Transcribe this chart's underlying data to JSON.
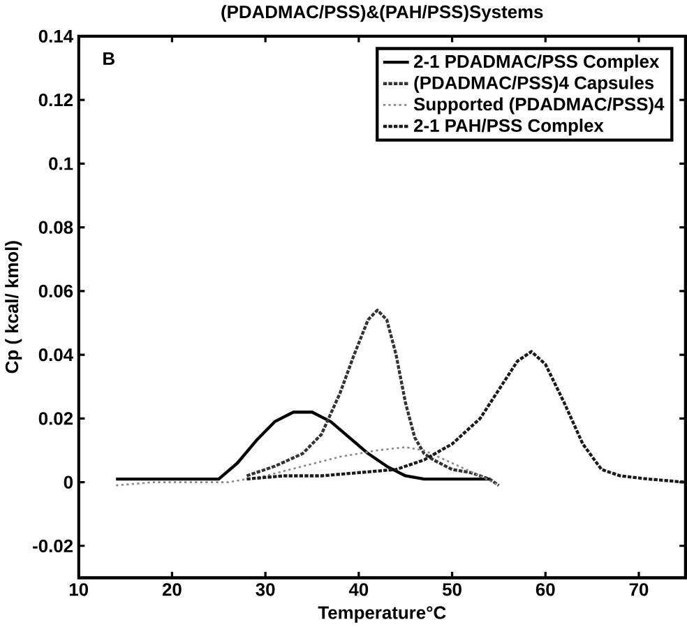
{
  "chart_data": {
    "type": "line",
    "title": "(PDADMAC/PSS)&(PAH/PSS)Systems",
    "xlabel": "Temperature°C",
    "ylabel": "Cp ( kcal/ kmol)",
    "annotations": [
      "B"
    ],
    "xlim": [
      10,
      75
    ],
    "ylim": [
      -0.03,
      0.14
    ],
    "xticks": [
      10,
      20,
      30,
      40,
      50,
      60,
      70
    ],
    "yticks": [
      -0.02,
      0,
      0.02,
      0.04,
      0.06,
      0.08,
      0.1,
      0.12,
      0.14
    ],
    "legend": "top right",
    "grid": false,
    "series": [
      {
        "name": "2-1 PDADMAC/PSS Complex",
        "color": "#000000",
        "line_style": "solid",
        "x": [
          14,
          18,
          22,
          25,
          27,
          29,
          31,
          33,
          34,
          35,
          37,
          39,
          41,
          43,
          45,
          47,
          50,
          54
        ],
        "values": [
          0.001,
          0.001,
          0.001,
          0.001,
          0.006,
          0.013,
          0.019,
          0.022,
          0.022,
          0.022,
          0.019,
          0.014,
          0.009,
          0.005,
          0.002,
          0.001,
          0.001,
          0.001
        ]
      },
      {
        "name": "(PDADMAC/PSS)4 Capsules",
        "color": "#333333",
        "line_style": "dashed",
        "x": [
          28,
          31,
          34,
          36,
          38,
          39.5,
          41,
          42,
          43,
          44,
          45,
          46,
          47,
          48,
          50,
          52,
          54,
          55
        ],
        "values": [
          0.002,
          0.005,
          0.009,
          0.015,
          0.028,
          0.04,
          0.051,
          0.054,
          0.051,
          0.04,
          0.025,
          0.014,
          0.009,
          0.007,
          0.004,
          0.003,
          0.001,
          -0.001
        ]
      },
      {
        "name": "Supported (PDADMAC/PSS)4",
        "color": "#888888",
        "line_style": "dotted",
        "x": [
          14,
          18,
          22,
          26,
          30,
          34,
          38,
          42,
          45,
          47,
          50,
          53,
          55
        ],
        "values": [
          -0.001,
          0,
          0,
          0,
          0.002,
          0.005,
          0.008,
          0.01,
          0.011,
          0.01,
          0.006,
          0.002,
          -0.001
        ]
      },
      {
        "name": "2-1 PAH/PSS Complex",
        "color": "#1a1a1a",
        "line_style": "dashed",
        "x": [
          28,
          32,
          36,
          40,
          44,
          47,
          50,
          53,
          55,
          57,
          58.5,
          60,
          62,
          64,
          66,
          68,
          71,
          75
        ],
        "values": [
          0.001,
          0.002,
          0.002,
          0.003,
          0.004,
          0.007,
          0.012,
          0.02,
          0.029,
          0.038,
          0.041,
          0.037,
          0.025,
          0.012,
          0.004,
          0.002,
          0.001,
          0
        ]
      }
    ]
  }
}
